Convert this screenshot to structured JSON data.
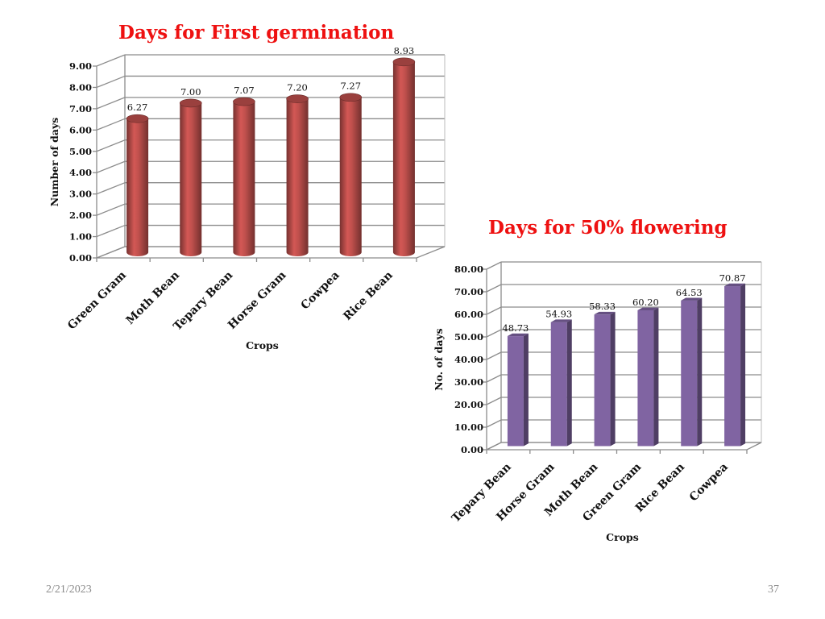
{
  "slide": {
    "date": "2/21/2023",
    "page_number": "37"
  },
  "chart_data": [
    {
      "type": "bar",
      "title": "Days for First germination",
      "xlabel": "Crops",
      "ylabel": "Number of days",
      "categories": [
        "Green Gram",
        "Moth Bean",
        "Tepary Bean",
        "Horse Gram",
        "Cowpea",
        "Rice Bean"
      ],
      "values": [
        6.27,
        7.0,
        7.07,
        7.2,
        7.27,
        8.93
      ],
      "value_labels": [
        "6.27",
        "7.00",
        "7.07",
        "7.20",
        "7.27",
        "8.93"
      ],
      "ylim": [
        0,
        9
      ],
      "yticks": [
        "0.00",
        "1.00",
        "2.00",
        "3.00",
        "4.00",
        "5.00",
        "6.00",
        "7.00",
        "8.00",
        "9.00"
      ],
      "bar_style": "cylinder",
      "grid": true,
      "color": "#c0504d"
    },
    {
      "type": "bar",
      "title": "Days for 50% flowering",
      "xlabel": "Crops",
      "ylabel": "No. of days",
      "categories": [
        "Tepary Bean",
        "Horse Gram",
        "Moth Bean",
        "Green Gram",
        "Rice Bean",
        "Cowpea"
      ],
      "values": [
        48.73,
        54.93,
        58.33,
        60.2,
        64.53,
        70.87
      ],
      "value_labels": [
        "48.73",
        "54.93",
        "58.33",
        "60.20",
        "64.53",
        "70.87"
      ],
      "ylim": [
        0,
        80
      ],
      "yticks": [
        "0.00",
        "10.00",
        "20.00",
        "30.00",
        "40.00",
        "50.00",
        "60.00",
        "70.00",
        "80.00"
      ],
      "bar_style": "box",
      "grid": true,
      "color": "#8064a2"
    }
  ]
}
